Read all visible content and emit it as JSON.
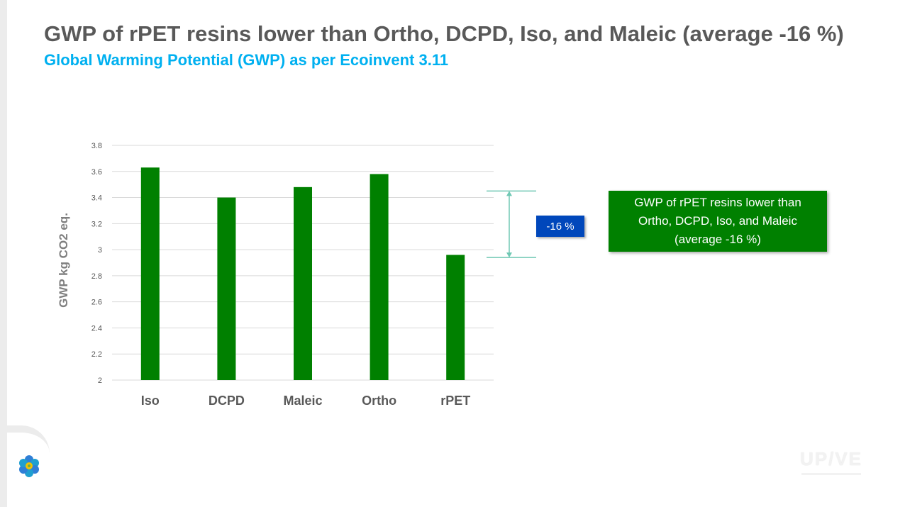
{
  "slide": {
    "title": "GWP of rPET resins lower than Ortho, DCPD, Iso, and Maleic (average -16 %)",
    "subtitle": "Global Warming Potential (GWP) as per Ecoinvent 3.11"
  },
  "colors": {
    "title": "#595959",
    "subtitle": "#00b0f0",
    "bar": "#008000",
    "badge": "#0047bb",
    "bracket": "#70c8b4"
  },
  "annotation": {
    "difference_label": "-16 %",
    "callout_text": "GWP of rPET resins lower than Ortho, DCPD, Iso, and Maleic (average -16 %)",
    "bracket_top_value": 3.45,
    "bracket_bottom_value": 2.94
  },
  "logos": {
    "corner_icon": "flower-network-icon",
    "brand": "UP/VE"
  },
  "chart_data": {
    "type": "bar",
    "title": "",
    "categories": [
      "Iso",
      "DCPD",
      "Maleic",
      "Ortho",
      "rPET"
    ],
    "values": [
      3.63,
      3.4,
      3.48,
      3.58,
      2.96
    ],
    "xlabel": "",
    "ylabel": "GWP kg CO2 eq.",
    "ylim": [
      2,
      3.8
    ],
    "yticks": [
      "2",
      "2.2",
      "2.4",
      "2.6",
      "2.8",
      "3",
      "3.2",
      "3.4",
      "3.6",
      "3.8"
    ],
    "ytick_values": [
      2,
      2.2,
      2.4,
      2.6,
      2.8,
      3,
      3.2,
      3.4,
      3.6,
      3.8
    ],
    "grid": true,
    "legend": "none"
  }
}
